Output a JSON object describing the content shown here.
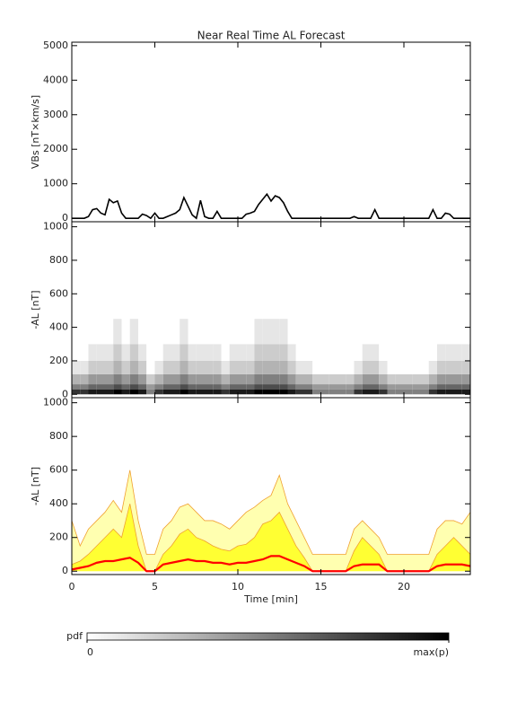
{
  "chart_data": [
    {
      "type": "line",
      "title": "Near Real Time AL Forecast",
      "ylabel": "VBs [nT×km/s]",
      "xlim": [
        0,
        24
      ],
      "ylim": [
        -100,
        5100
      ],
      "yticks": [
        0,
        1000,
        2000,
        3000,
        4000,
        5000
      ],
      "x": [
        0,
        0.25,
        0.5,
        0.75,
        1,
        1.25,
        1.5,
        1.75,
        2,
        2.25,
        2.5,
        2.75,
        3,
        3.25,
        3.5,
        3.75,
        4,
        4.25,
        4.5,
        4.75,
        5,
        5.25,
        5.5,
        5.75,
        6,
        6.25,
        6.5,
        6.75,
        7,
        7.25,
        7.5,
        7.75,
        8,
        8.25,
        8.5,
        8.75,
        9,
        9.25,
        9.5,
        9.75,
        10,
        10.25,
        10.5,
        10.75,
        11,
        11.25,
        11.5,
        11.75,
        12,
        12.25,
        12.5,
        12.75,
        13,
        13.25,
        13.5,
        13.75,
        14,
        14.25,
        14.5,
        14.75,
        15,
        15.25,
        15.5,
        15.75,
        16,
        16.25,
        16.5,
        16.75,
        17,
        17.25,
        17.5,
        17.75,
        18,
        18.25,
        18.5,
        18.75,
        19,
        19.25,
        19.5,
        19.75,
        20,
        20.25,
        20.5,
        20.75,
        21,
        21.25,
        21.5,
        21.75,
        22,
        22.25,
        22.5,
        22.75,
        23,
        23.25,
        23.5,
        23.75,
        24
      ],
      "series": [
        {
          "color": "#000000",
          "values": [
            0,
            0,
            0,
            0,
            50,
            250,
            280,
            150,
            100,
            550,
            450,
            500,
            150,
            0,
            0,
            0,
            0,
            120,
            80,
            0,
            150,
            0,
            0,
            50,
            100,
            150,
            250,
            600,
            350,
            100,
            0,
            520,
            50,
            0,
            0,
            200,
            0,
            0,
            0,
            0,
            0,
            0,
            120,
            150,
            200,
            400,
            550,
            700,
            500,
            650,
            600,
            450,
            200,
            0,
            0,
            0,
            0,
            0,
            0,
            0,
            0,
            0,
            0,
            0,
            0,
            0,
            0,
            0,
            50,
            0,
            0,
            0,
            0,
            250,
            0,
            0,
            0,
            0,
            0,
            0,
            0,
            0,
            0,
            0,
            0,
            0,
            0,
            250,
            0,
            0,
            150,
            120,
            0,
            0,
            0,
            0,
            0
          ]
        }
      ]
    },
    {
      "type": "heatmap",
      "ylabel": "-AL [nT]",
      "xlim": [
        0,
        24
      ],
      "ylim": [
        -20,
        1030
      ],
      "yticks": [
        0,
        200,
        400,
        600,
        800,
        1000
      ],
      "xbins": [
        0,
        0.5,
        1,
        1.5,
        2,
        2.5,
        3,
        3.5,
        4,
        4.5,
        5,
        5.5,
        6,
        6.5,
        7,
        7.5,
        8,
        8.5,
        9,
        9.5,
        10,
        10.5,
        11,
        11.5,
        12,
        12.5,
        13,
        13.5,
        14,
        14.5,
        15,
        15.5,
        16,
        16.5,
        17,
        17.5,
        18,
        18.5,
        19,
        19.5,
        20,
        20.5,
        21,
        21.5,
        22,
        22.5,
        23,
        23.5,
        24
      ],
      "ybins": [
        0,
        30,
        60,
        120,
        200,
        300,
        450
      ],
      "z": [
        [
          0.8,
          0.5,
          0.3,
          0.1,
          0,
          0
        ],
        [
          0.8,
          0.5,
          0.3,
          0.1,
          0,
          0
        ],
        [
          0.9,
          0.6,
          0.4,
          0.2,
          0.1,
          0
        ],
        [
          0.9,
          0.6,
          0.4,
          0.2,
          0.1,
          0
        ],
        [
          0.9,
          0.6,
          0.4,
          0.2,
          0.1,
          0
        ],
        [
          1,
          0.7,
          0.5,
          0.3,
          0.2,
          0.1
        ],
        [
          0.9,
          0.6,
          0.4,
          0.2,
          0.1,
          0
        ],
        [
          1,
          0.7,
          0.5,
          0.3,
          0.2,
          0.1
        ],
        [
          0.9,
          0.6,
          0.4,
          0.2,
          0.1,
          0
        ],
        [
          0.5,
          0.4,
          0.2,
          0,
          0,
          0
        ],
        [
          0.8,
          0.5,
          0.3,
          0.1,
          0,
          0
        ],
        [
          0.9,
          0.6,
          0.4,
          0.2,
          0.1,
          0
        ],
        [
          0.9,
          0.6,
          0.4,
          0.2,
          0.1,
          0
        ],
        [
          1,
          0.7,
          0.5,
          0.3,
          0.2,
          0.1
        ],
        [
          0.9,
          0.6,
          0.4,
          0.2,
          0.1,
          0
        ],
        [
          0.9,
          0.6,
          0.4,
          0.2,
          0.1,
          0
        ],
        [
          0.9,
          0.6,
          0.4,
          0.2,
          0.1,
          0
        ],
        [
          0.9,
          0.6,
          0.4,
          0.2,
          0.1,
          0
        ],
        [
          0.8,
          0.5,
          0.3,
          0.1,
          0,
          0
        ],
        [
          0.9,
          0.6,
          0.4,
          0.2,
          0.1,
          0
        ],
        [
          0.9,
          0.6,
          0.4,
          0.2,
          0.1,
          0
        ],
        [
          0.9,
          0.6,
          0.4,
          0.2,
          0.1,
          0
        ],
        [
          1,
          0.7,
          0.5,
          0.3,
          0.2,
          0.1
        ],
        [
          1,
          0.7,
          0.5,
          0.3,
          0.2,
          0.1
        ],
        [
          1,
          0.7,
          0.5,
          0.3,
          0.2,
          0.1
        ],
        [
          1,
          0.7,
          0.5,
          0.3,
          0.2,
          0.1
        ],
        [
          0.9,
          0.6,
          0.4,
          0.2,
          0.1,
          0
        ],
        [
          0.8,
          0.5,
          0.3,
          0.1,
          0,
          0
        ],
        [
          0.8,
          0.5,
          0.3,
          0.1,
          0,
          0
        ],
        [
          0.5,
          0.4,
          0.2,
          0,
          0,
          0
        ],
        [
          0.5,
          0.4,
          0.2,
          0,
          0,
          0
        ],
        [
          0.5,
          0.4,
          0.2,
          0,
          0,
          0
        ],
        [
          0.5,
          0.4,
          0.2,
          0,
          0,
          0
        ],
        [
          0.5,
          0.4,
          0.2,
          0,
          0,
          0
        ],
        [
          0.8,
          0.5,
          0.3,
          0.1,
          0,
          0
        ],
        [
          0.9,
          0.6,
          0.4,
          0.2,
          0.1,
          0
        ],
        [
          0.9,
          0.6,
          0.4,
          0.2,
          0.1,
          0
        ],
        [
          0.8,
          0.5,
          0.3,
          0.1,
          0,
          0
        ],
        [
          0.5,
          0.4,
          0.2,
          0,
          0,
          0
        ],
        [
          0.5,
          0.4,
          0.2,
          0,
          0,
          0
        ],
        [
          0.5,
          0.4,
          0.2,
          0,
          0,
          0
        ],
        [
          0.5,
          0.4,
          0.2,
          0,
          0,
          0
        ],
        [
          0.5,
          0.4,
          0.2,
          0,
          0,
          0
        ],
        [
          0.8,
          0.5,
          0.3,
          0.1,
          0,
          0
        ],
        [
          0.9,
          0.6,
          0.4,
          0.2,
          0.1,
          0
        ],
        [
          0.9,
          0.6,
          0.4,
          0.2,
          0.1,
          0
        ],
        [
          0.9,
          0.6,
          0.4,
          0.2,
          0.1,
          0
        ],
        [
          0.9,
          0.6,
          0.4,
          0.2,
          0.1,
          0
        ]
      ],
      "colorbar": {
        "label": "pdf",
        "range": [
          0,
          1
        ],
        "ticks": [
          0,
          {
            "value": 1,
            "label": "max(p)"
          }
        ],
        "cmap": [
          "#ffffff",
          "#000000"
        ]
      }
    },
    {
      "type": "area",
      "ylabel": "-AL [nT]",
      "xlabel": "Time [min]",
      "xlim": [
        0,
        24
      ],
      "ylim": [
        -20,
        1030
      ],
      "yticks": [
        0,
        200,
        400,
        600,
        800,
        1000
      ],
      "xticks": [
        0,
        5,
        10,
        15,
        20
      ],
      "x": [
        0,
        0.5,
        1,
        1.5,
        2,
        2.5,
        3,
        3.5,
        4,
        4.5,
        5,
        5.5,
        6,
        6.5,
        7,
        7.5,
        8,
        8.5,
        9,
        9.5,
        10,
        10.5,
        11,
        11.5,
        12,
        12.5,
        13,
        13.5,
        14,
        14.5,
        15,
        15.5,
        16,
        16.5,
        17,
        17.5,
        18,
        18.5,
        19,
        19.5,
        20,
        20.5,
        21,
        21.5,
        22,
        22.5,
        23,
        23.5,
        24
      ],
      "series": [
        {
          "color": "#ffffb0",
          "edgecolor": "#f0a030",
          "values": [
            300,
            150,
            250,
            300,
            350,
            420,
            350,
            600,
            300,
            100,
            100,
            250,
            300,
            380,
            400,
            350,
            300,
            300,
            280,
            250,
            300,
            350,
            380,
            420,
            450,
            570,
            400,
            300,
            200,
            100,
            100,
            100,
            100,
            100,
            250,
            300,
            250,
            200,
            100,
            100,
            100,
            100,
            100,
            100,
            250,
            300,
            300,
            280,
            350
          ]
        },
        {
          "color": "#ffff33",
          "edgecolor": "#f0a030",
          "values": [
            40,
            60,
            100,
            150,
            200,
            250,
            200,
            400,
            150,
            0,
            0,
            100,
            150,
            220,
            250,
            200,
            180,
            150,
            130,
            120,
            150,
            160,
            200,
            280,
            300,
            350,
            250,
            150,
            80,
            0,
            0,
            0,
            0,
            0,
            120,
            200,
            150,
            100,
            0,
            0,
            0,
            0,
            0,
            0,
            100,
            150,
            200,
            150,
            100
          ]
        },
        {
          "color": "#ff0000",
          "kind": "line",
          "values": [
            10,
            20,
            30,
            50,
            60,
            60,
            70,
            80,
            50,
            0,
            0,
            40,
            50,
            60,
            70,
            60,
            60,
            50,
            50,
            40,
            50,
            50,
            60,
            70,
            90,
            90,
            70,
            50,
            30,
            0,
            0,
            0,
            0,
            0,
            30,
            40,
            40,
            40,
            0,
            0,
            0,
            0,
            0,
            0,
            30,
            40,
            40,
            40,
            30
          ]
        }
      ]
    }
  ]
}
